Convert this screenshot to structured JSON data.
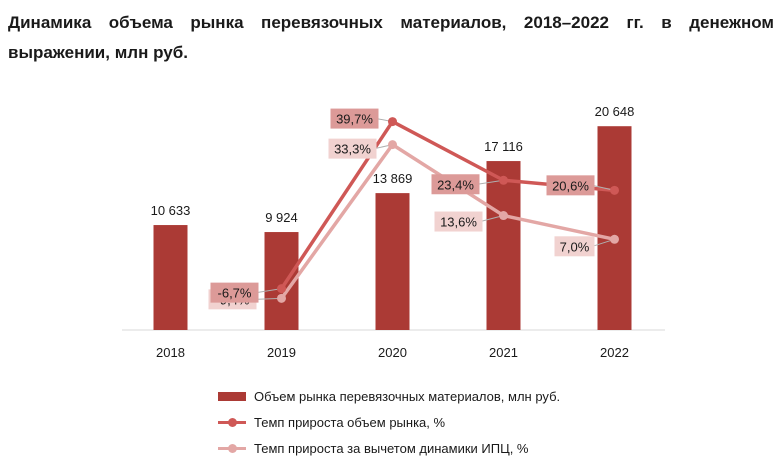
{
  "title": "Динамика объема рынка перевязочных материалов, 2018–2022 гг. в денежном выражении, млн руб.",
  "colors": {
    "bar": "#ab3a35",
    "market_growth": "#cf5856",
    "cpi_growth": "#e3a7a5",
    "market_label_bg": "#dc9a98",
    "cpi_label_bg": "#f1d2d0"
  },
  "chart_data": {
    "type": "bar",
    "categories": [
      "2018",
      "2019",
      "2020",
      "2021",
      "2022"
    ],
    "bars": {
      "name": "Объем рынка перевязочных материалов, млн руб.",
      "values": [
        10633,
        9924,
        13869,
        17116,
        20648
      ],
      "labels": [
        "10 633",
        "9 924",
        "13 869",
        "17 116",
        "20 648"
      ]
    },
    "lines": [
      {
        "name": "Темп прироста объем рынка, %",
        "values": [
          -6.7,
          39.7,
          23.4,
          20.6
        ],
        "labels": [
          "-6,7%",
          "39,7%",
          "23,4%",
          "20,6%"
        ],
        "categories": [
          "2019",
          "2020",
          "2021",
          "2022"
        ]
      },
      {
        "name": "Темп прироста за вычетом динамики ИПЦ, %",
        "values": [
          -9.4,
          33.3,
          13.6,
          7.0
        ],
        "labels": [
          "-9,4%",
          "33,3%",
          "13,6%",
          "7,0%"
        ],
        "categories": [
          "2019",
          "2020",
          "2021",
          "2022"
        ]
      }
    ],
    "legend_position": "bottom"
  }
}
